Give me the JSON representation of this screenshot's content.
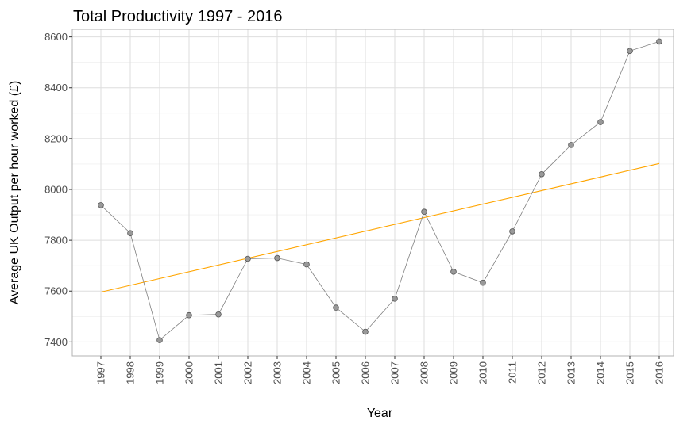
{
  "chart_data": {
    "type": "line",
    "title": "Total Productivity 1997 - 2016",
    "xlabel": "Year",
    "ylabel": "Average UK Output per hour worked (£)",
    "categories": [
      "1997",
      "1998",
      "1999",
      "2000",
      "2001",
      "2002",
      "2003",
      "2004",
      "2005",
      "2006",
      "2007",
      "2008",
      "2009",
      "2010",
      "2011",
      "2012",
      "2013",
      "2014",
      "2015",
      "2016"
    ],
    "series": [
      {
        "values": [
          7938,
          7828,
          7407,
          7505,
          7508,
          7727,
          7730,
          7705,
          7535,
          7440,
          7570,
          7912,
          7676,
          7633,
          7835,
          8060,
          8175,
          8265,
          8545,
          8582
        ],
        "color": "#808080",
        "marker": "circle",
        "marker_fill": "#999999"
      }
    ],
    "trend_line": {
      "start": 7596,
      "end": 8102,
      "color": "#ffa500"
    },
    "yticks": [
      7400,
      7600,
      7800,
      8000,
      8200,
      8400,
      8600
    ],
    "ylim": [
      7345,
      8630
    ],
    "grid": true,
    "legend": "none",
    "colors": {
      "panel_border": "#b3b3b3",
      "grid_major": "#dedede",
      "grid_minor": "#ececec",
      "tick_text": "#4d4d4d"
    }
  }
}
